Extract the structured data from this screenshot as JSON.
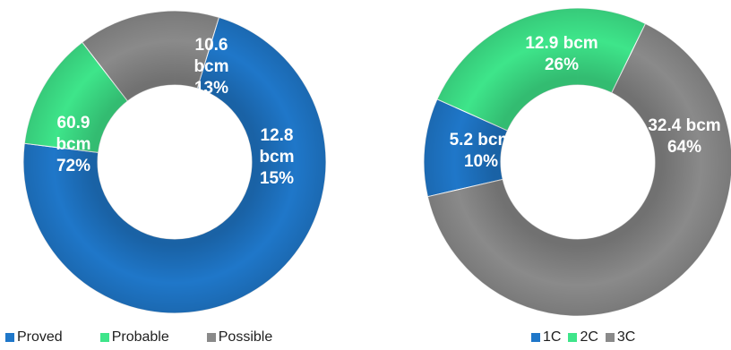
{
  "chart_data": [
    {
      "type": "pie",
      "donut": true,
      "legend_position": "bottom",
      "categories": [
        "Proved",
        "Probable",
        "Possible"
      ],
      "values": [
        60.9,
        10.6,
        12.8
      ],
      "percentages": [
        72,
        13,
        15
      ],
      "data_labels": [
        [
          "60.9",
          "bcm",
          "72%"
        ],
        [
          "10.6",
          "bcm",
          "13%"
        ],
        [
          "12.8",
          "bcm",
          "15%"
        ]
      ],
      "colors": [
        "#1f77c9",
        "#3ee58a",
        "#8a8a8a"
      ]
    },
    {
      "type": "pie",
      "donut": true,
      "legend_position": "bottom",
      "categories": [
        "1C",
        "2C",
        "3C"
      ],
      "values": [
        5.2,
        12.9,
        32.4
      ],
      "percentages": [
        10,
        26,
        64
      ],
      "data_labels": [
        [
          "5.2 bcm",
          "10%"
        ],
        [
          "12.9 bcm",
          "26%"
        ],
        [
          "32.4 bcm",
          "64%"
        ]
      ],
      "colors": [
        "#1f77c9",
        "#3ee58a",
        "#8a8a8a"
      ]
    }
  ]
}
